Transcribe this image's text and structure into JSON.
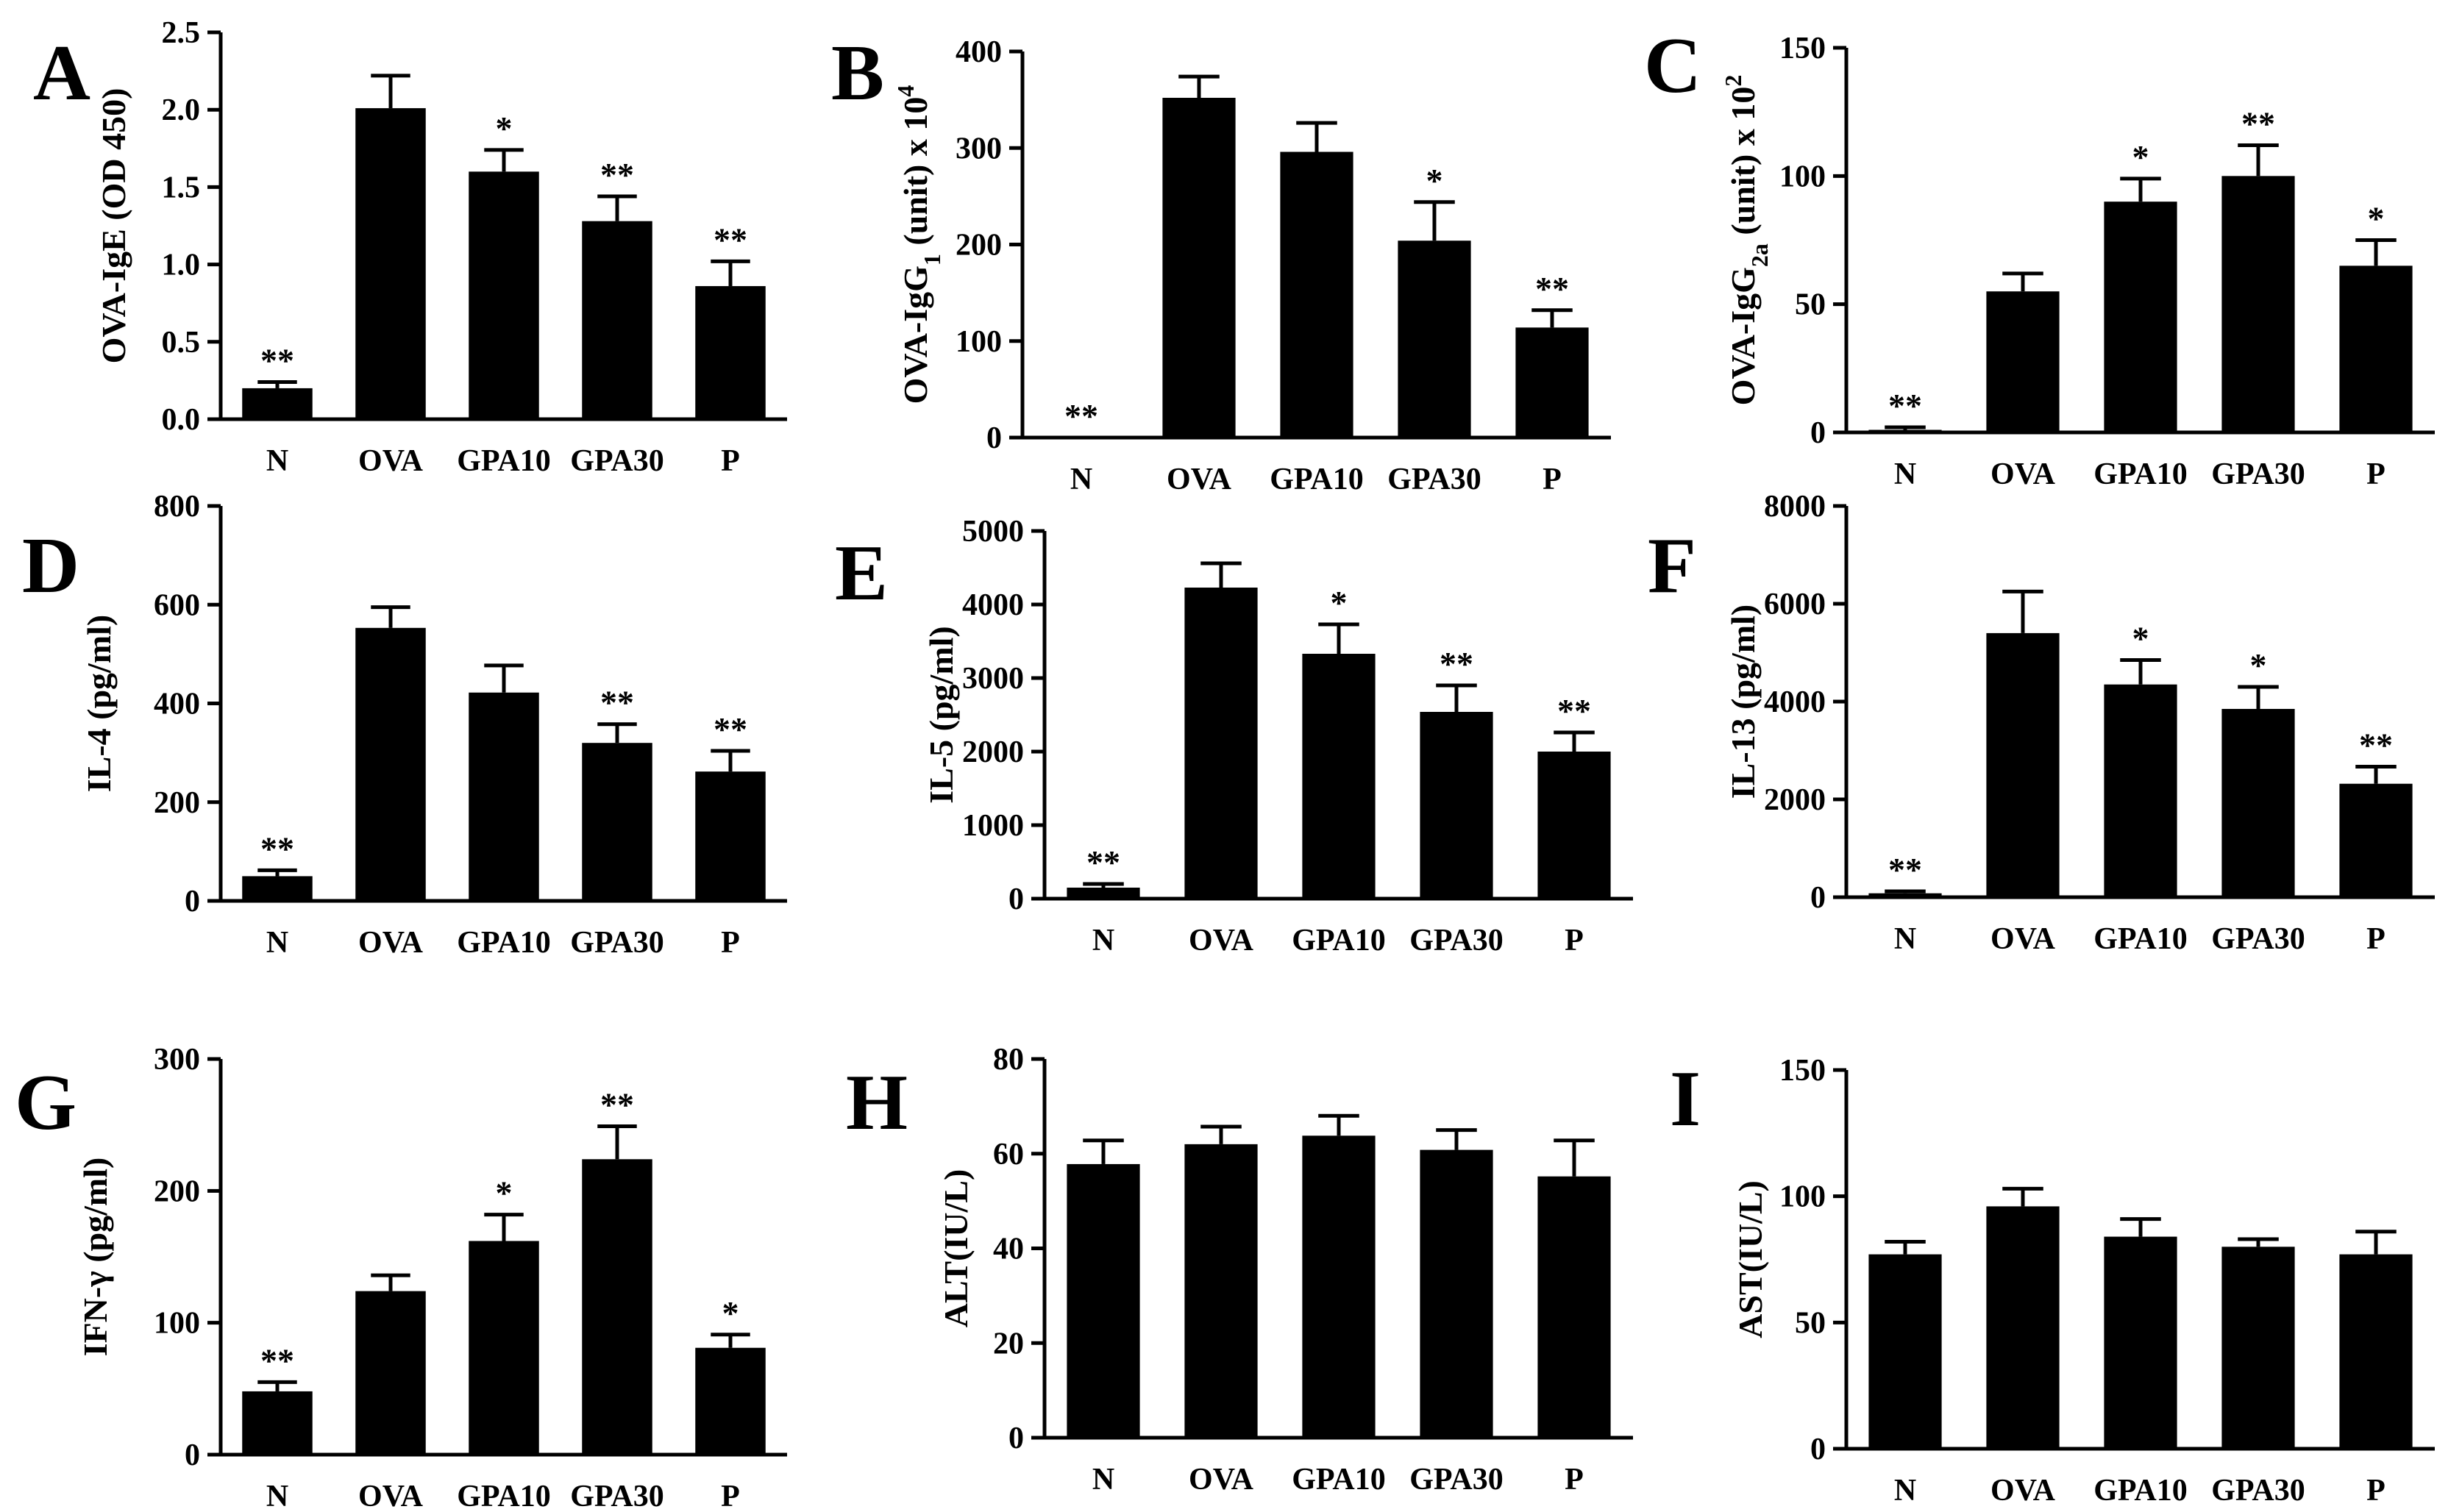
{
  "chart_data": [
    {
      "panel": "A",
      "type": "bar",
      "categories": [
        "N",
        "OVA",
        "GPA10",
        "GPA30",
        "P"
      ],
      "values": [
        0.2,
        2.01,
        1.6,
        1.28,
        0.86
      ],
      "errors": [
        0.04,
        0.21,
        0.14,
        0.16,
        0.16
      ],
      "significance": [
        "**",
        "",
        "*",
        "**",
        "**"
      ],
      "ylabel": "OVA-IgE (OD 450)",
      "ylabel_sub": "",
      "ylabel_tail": "",
      "ylim": [
        0,
        2.5
      ],
      "yticks": [
        "0.0",
        "0.5",
        "1.0",
        "1.5",
        "2.0",
        "2.5"
      ],
      "title": "",
      "xlabel": ""
    },
    {
      "panel": "B",
      "type": "bar",
      "categories": [
        "N",
        "OVA",
        "GPA10",
        "GPA30",
        "P"
      ],
      "values": [
        0,
        352,
        296,
        204,
        114
      ],
      "errors": [
        0,
        22,
        30,
        40,
        18
      ],
      "significance": [
        "**",
        "",
        "",
        "*",
        "**"
      ],
      "ylabel": "OVA-IgG",
      "ylabel_sub": "1",
      "ylabel_tail": " (unit) x 10",
      "ylabel_sup": "4",
      "ylim": [
        0,
        400
      ],
      "yticks": [
        "0",
        "100",
        "200",
        "300",
        "400"
      ],
      "title": "",
      "xlabel": ""
    },
    {
      "panel": "C",
      "type": "bar",
      "categories": [
        "N",
        "OVA",
        "GPA10",
        "GPA30",
        "P"
      ],
      "values": [
        1,
        55,
        90,
        100,
        65
      ],
      "errors": [
        1,
        7,
        9,
        12,
        10
      ],
      "significance": [
        "**",
        "",
        "*",
        "**",
        "*"
      ],
      "ylabel": "OVA-IgG",
      "ylabel_sub": "2a",
      "ylabel_tail": " (unit) x 10",
      "ylabel_sup": "2",
      "ylim": [
        0,
        150
      ],
      "yticks": [
        "0",
        "50",
        "100",
        "150"
      ],
      "title": "",
      "xlabel": ""
    },
    {
      "panel": "D",
      "type": "bar",
      "categories": [
        "N",
        "OVA",
        "GPA10",
        "GPA30",
        "P"
      ],
      "values": [
        50,
        553,
        422,
        320,
        262
      ],
      "errors": [
        12,
        42,
        55,
        38,
        42
      ],
      "significance": [
        "**",
        "",
        "",
        "**",
        "**"
      ],
      "ylabel": "IL-4 (pg/ml)",
      "ylabel_sub": "",
      "ylabel_tail": "",
      "ylim": [
        0,
        800
      ],
      "yticks": [
        "0",
        "200",
        "400",
        "600",
        "800"
      ],
      "title": "",
      "xlabel": ""
    },
    {
      "panel": "E",
      "type": "bar",
      "categories": [
        "N",
        "OVA",
        "GPA10",
        "GPA30",
        "P"
      ],
      "values": [
        150,
        4230,
        3330,
        2540,
        2000
      ],
      "errors": [
        50,
        330,
        400,
        360,
        260
      ],
      "significance": [
        "**",
        "",
        "*",
        "**",
        "**"
      ],
      "ylabel": "IL-5 (pg/ml)",
      "ylabel_sub": "",
      "ylabel_tail": "",
      "ylim": [
        0,
        5000
      ],
      "yticks": [
        "0",
        "1000",
        "2000",
        "3000",
        "4000",
        "5000"
      ],
      "title": "",
      "xlabel": ""
    },
    {
      "panel": "F",
      "type": "bar",
      "categories": [
        "N",
        "OVA",
        "GPA10",
        "GPA30",
        "P"
      ],
      "values": [
        80,
        5400,
        4350,
        3850,
        2320
      ],
      "errors": [
        40,
        850,
        500,
        450,
        350
      ],
      "significance": [
        "**",
        "",
        "*",
        "*",
        "**"
      ],
      "ylabel": "IL-13 (pg/ml)",
      "ylabel_sub": "",
      "ylabel_tail": "",
      "ylim": [
        0,
        8000
      ],
      "yticks": [
        "0",
        "2000",
        "4000",
        "6000",
        "8000"
      ],
      "title": "",
      "xlabel": ""
    },
    {
      "panel": "G",
      "type": "bar",
      "categories": [
        "N",
        "OVA",
        "GPA10",
        "GPA30",
        "P"
      ],
      "values": [
        48,
        124,
        162,
        224,
        81
      ],
      "errors": [
        7,
        12,
        20,
        25,
        10
      ],
      "significance": [
        "**",
        "",
        "*",
        "**",
        "*"
      ],
      "ylabel": "IFN-γ (pg/ml)",
      "ylabel_sub": "",
      "ylabel_tail": "",
      "ylim": [
        0,
        300
      ],
      "yticks": [
        "0",
        "100",
        "200",
        "300"
      ],
      "title": "",
      "xlabel": ""
    },
    {
      "panel": "H",
      "type": "bar",
      "categories": [
        "N",
        "OVA",
        "GPA10",
        "GPA30",
        "P"
      ],
      "values": [
        57.8,
        62,
        63.8,
        60.8,
        55.2
      ],
      "errors": [
        5,
        3.7,
        4.2,
        4.2,
        7.6
      ],
      "significance": [
        "",
        "",
        "",
        "",
        ""
      ],
      "ylabel": "ALT(IU/L)",
      "ylabel_sub": "",
      "ylabel_tail": "",
      "ylim": [
        0,
        80
      ],
      "yticks": [
        "0",
        "20",
        "40",
        "60",
        "80"
      ],
      "title": "",
      "xlabel": ""
    },
    {
      "panel": "I",
      "type": "bar",
      "categories": [
        "N",
        "OVA",
        "GPA10",
        "GPA30",
        "P"
      ],
      "values": [
        77,
        96,
        84,
        80,
        77
      ],
      "errors": [
        5,
        7,
        7,
        3,
        9
      ],
      "significance": [
        "",
        "",
        "",
        "",
        ""
      ],
      "ylabel": "AST(IU/L)",
      "ylabel_sub": "",
      "ylabel_tail": "",
      "ylim": [
        0,
        150
      ],
      "yticks": [
        "0",
        "50",
        "100",
        "150"
      ],
      "title": "",
      "xlabel": ""
    }
  ]
}
